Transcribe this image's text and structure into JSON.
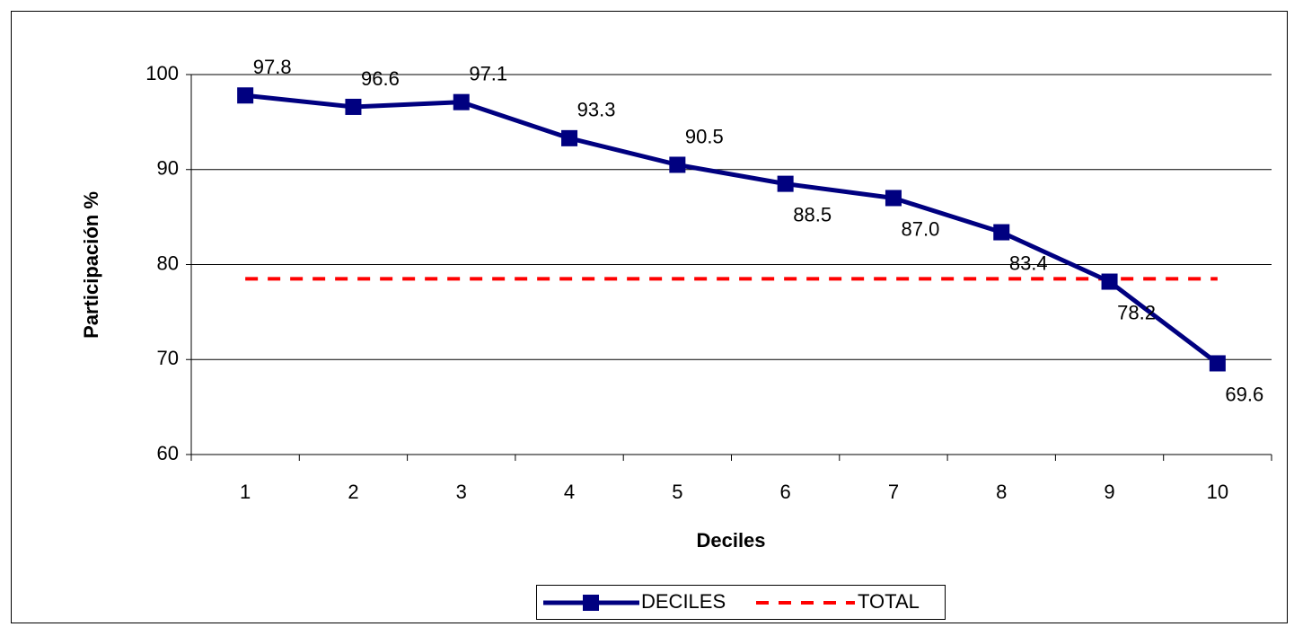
{
  "chart_data": {
    "type": "line",
    "x_label": "Deciles",
    "y_label": "Participación %",
    "categories": [
      "1",
      "2",
      "3",
      "4",
      "5",
      "6",
      "7",
      "8",
      "9",
      "10"
    ],
    "series": [
      {
        "name": "DECILES",
        "color": "#000080",
        "values": [
          97.8,
          96.6,
          97.1,
          93.3,
          90.5,
          88.5,
          87.0,
          83.4,
          78.2,
          69.6
        ],
        "value_labels": [
          "97.8",
          "96.6",
          "97.1",
          "93.3",
          "90.5",
          "88.5",
          "87.0",
          "83.4",
          "78.2",
          "69.6"
        ]
      },
      {
        "name": "TOTAL",
        "color": "#ff0000",
        "values": [
          78.5,
          78.5,
          78.5,
          78.5,
          78.5,
          78.5,
          78.5,
          78.5,
          78.5,
          78.5
        ]
      }
    ],
    "ylim": [
      60,
      100
    ],
    "yticks": [
      60,
      70,
      80,
      90,
      100
    ],
    "grid": true,
    "legend": "bottom"
  }
}
